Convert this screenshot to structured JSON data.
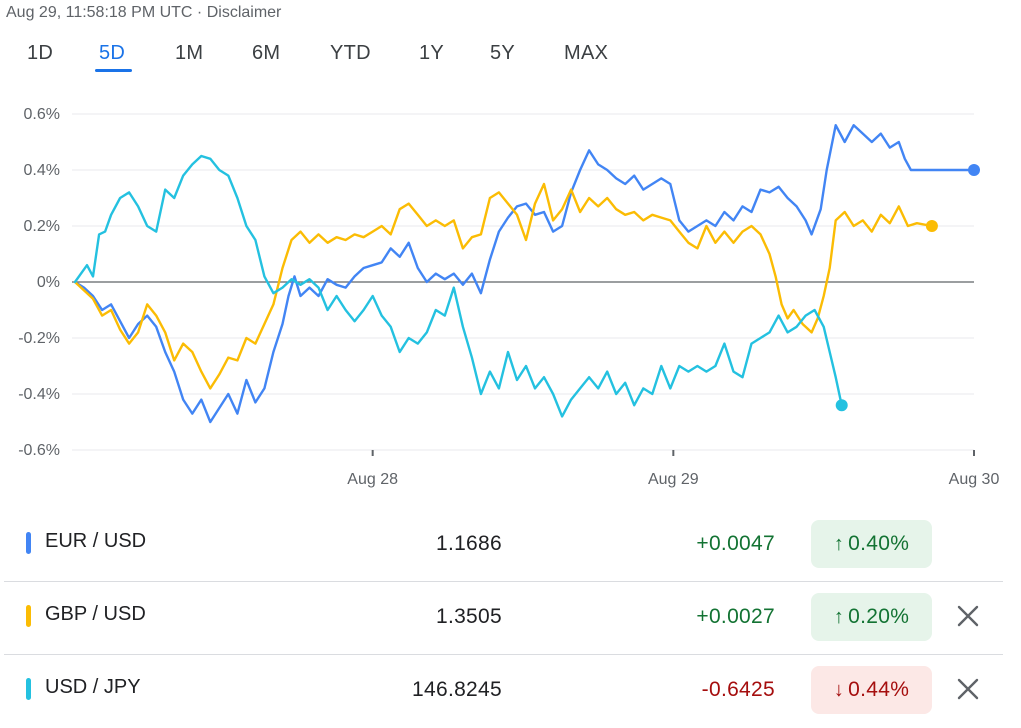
{
  "header": {
    "timestamp": "Aug 29, 11:58:18 PM UTC",
    "separator": "·",
    "disclaimer": "Disclaimer"
  },
  "tabs": [
    {
      "label": "1D",
      "active": false
    },
    {
      "label": "5D",
      "active": true
    },
    {
      "label": "1M",
      "active": false
    },
    {
      "label": "6M",
      "active": false
    },
    {
      "label": "YTD",
      "active": false
    },
    {
      "label": "1Y",
      "active": false
    },
    {
      "label": "5Y",
      "active": false
    },
    {
      "label": "MAX",
      "active": false
    }
  ],
  "chart_data": {
    "type": "line",
    "ylim": [
      -0.6,
      0.6
    ],
    "yticks": [
      "0.6%",
      "0.4%",
      "0.2%",
      "0%",
      "-0.2%",
      "-0.4%",
      "-0.6%"
    ],
    "ytick_values": [
      0.6,
      0.4,
      0.2,
      0,
      -0.2,
      -0.4,
      -0.6
    ],
    "xlim": [
      -1.0,
      2.0
    ],
    "xticks": [
      "Aug 28",
      "Aug 29",
      "Aug 30"
    ],
    "xtick_values": [
      0,
      1,
      2
    ],
    "grid": true,
    "series": [
      {
        "name": "EUR / USD",
        "color": "#4285f4",
        "end_value": 0.4,
        "points": [
          [
            -0.99,
            0
          ],
          [
            -0.96,
            -0.02
          ],
          [
            -0.93,
            -0.05
          ],
          [
            -0.9,
            -0.1
          ],
          [
            -0.87,
            -0.08
          ],
          [
            -0.84,
            -0.14
          ],
          [
            -0.81,
            -0.2
          ],
          [
            -0.78,
            -0.15
          ],
          [
            -0.75,
            -0.12
          ],
          [
            -0.72,
            -0.16
          ],
          [
            -0.69,
            -0.25
          ],
          [
            -0.66,
            -0.32
          ],
          [
            -0.63,
            -0.42
          ],
          [
            -0.6,
            -0.47
          ],
          [
            -0.57,
            -0.42
          ],
          [
            -0.54,
            -0.5
          ],
          [
            -0.51,
            -0.45
          ],
          [
            -0.48,
            -0.4
          ],
          [
            -0.45,
            -0.47
          ],
          [
            -0.42,
            -0.35
          ],
          [
            -0.39,
            -0.43
          ],
          [
            -0.36,
            -0.38
          ],
          [
            -0.33,
            -0.25
          ],
          [
            -0.3,
            -0.15
          ],
          [
            -0.28,
            -0.05
          ],
          [
            -0.26,
            0.02
          ],
          [
            -0.24,
            -0.05
          ],
          [
            -0.21,
            -0.02
          ],
          [
            -0.18,
            -0.05
          ],
          [
            -0.15,
            0.01
          ],
          [
            -0.12,
            -0.01
          ],
          [
            -0.09,
            -0.02
          ],
          [
            -0.06,
            0.02
          ],
          [
            -0.03,
            0.05
          ],
          [
            0,
            0.06
          ],
          [
            0.03,
            0.07
          ],
          [
            0.06,
            0.12
          ],
          [
            0.09,
            0.09
          ],
          [
            0.12,
            0.14
          ],
          [
            0.15,
            0.05
          ],
          [
            0.18,
            0
          ],
          [
            0.21,
            0.03
          ],
          [
            0.24,
            0.01
          ],
          [
            0.27,
            0.03
          ],
          [
            0.3,
            -0.01
          ],
          [
            0.33,
            0.03
          ],
          [
            0.36,
            -0.04
          ],
          [
            0.39,
            0.08
          ],
          [
            0.42,
            0.18
          ],
          [
            0.45,
            0.23
          ],
          [
            0.48,
            0.27
          ],
          [
            0.51,
            0.28
          ],
          [
            0.54,
            0.24
          ],
          [
            0.57,
            0.25
          ],
          [
            0.6,
            0.18
          ],
          [
            0.63,
            0.2
          ],
          [
            0.66,
            0.32
          ],
          [
            0.69,
            0.4
          ],
          [
            0.72,
            0.47
          ],
          [
            0.75,
            0.42
          ],
          [
            0.78,
            0.4
          ],
          [
            0.81,
            0.37
          ],
          [
            0.84,
            0.35
          ],
          [
            0.87,
            0.38
          ],
          [
            0.9,
            0.33
          ],
          [
            0.93,
            0.35
          ],
          [
            0.96,
            0.37
          ],
          [
            0.99,
            0.35
          ],
          [
            1.02,
            0.22
          ],
          [
            1.05,
            0.18
          ],
          [
            1.08,
            0.2
          ],
          [
            1.11,
            0.22
          ],
          [
            1.14,
            0.2
          ],
          [
            1.17,
            0.25
          ],
          [
            1.2,
            0.22
          ],
          [
            1.23,
            0.27
          ],
          [
            1.26,
            0.25
          ],
          [
            1.29,
            0.33
          ],
          [
            1.32,
            0.32
          ],
          [
            1.35,
            0.34
          ],
          [
            1.38,
            0.3
          ],
          [
            1.41,
            0.27
          ],
          [
            1.44,
            0.22
          ],
          [
            1.46,
            0.17
          ],
          [
            1.49,
            0.26
          ],
          [
            1.51,
            0.4
          ],
          [
            1.54,
            0.56
          ],
          [
            1.57,
            0.5
          ],
          [
            1.6,
            0.56
          ],
          [
            1.63,
            0.53
          ],
          [
            1.66,
            0.5
          ],
          [
            1.69,
            0.53
          ],
          [
            1.72,
            0.48
          ],
          [
            1.75,
            0.5
          ],
          [
            1.77,
            0.44
          ],
          [
            1.79,
            0.4
          ],
          [
            2.0,
            0.4
          ]
        ]
      },
      {
        "name": "GBP / USD",
        "color": "#fbbc04",
        "end_value": 0.2,
        "points": [
          [
            -0.99,
            0
          ],
          [
            -0.96,
            -0.03
          ],
          [
            -0.93,
            -0.06
          ],
          [
            -0.9,
            -0.12
          ],
          [
            -0.87,
            -0.1
          ],
          [
            -0.84,
            -0.17
          ],
          [
            -0.81,
            -0.22
          ],
          [
            -0.78,
            -0.18
          ],
          [
            -0.75,
            -0.08
          ],
          [
            -0.72,
            -0.12
          ],
          [
            -0.69,
            -0.18
          ],
          [
            -0.66,
            -0.28
          ],
          [
            -0.63,
            -0.22
          ],
          [
            -0.6,
            -0.25
          ],
          [
            -0.57,
            -0.32
          ],
          [
            -0.54,
            -0.38
          ],
          [
            -0.51,
            -0.33
          ],
          [
            -0.48,
            -0.27
          ],
          [
            -0.45,
            -0.28
          ],
          [
            -0.42,
            -0.2
          ],
          [
            -0.39,
            -0.22
          ],
          [
            -0.36,
            -0.15
          ],
          [
            -0.33,
            -0.08
          ],
          [
            -0.3,
            0.05
          ],
          [
            -0.27,
            0.15
          ],
          [
            -0.24,
            0.18
          ],
          [
            -0.21,
            0.14
          ],
          [
            -0.18,
            0.17
          ],
          [
            -0.15,
            0.14
          ],
          [
            -0.12,
            0.16
          ],
          [
            -0.09,
            0.15
          ],
          [
            -0.06,
            0.17
          ],
          [
            -0.03,
            0.16
          ],
          [
            0,
            0.18
          ],
          [
            0.03,
            0.2
          ],
          [
            0.06,
            0.17
          ],
          [
            0.09,
            0.26
          ],
          [
            0.12,
            0.28
          ],
          [
            0.15,
            0.24
          ],
          [
            0.18,
            0.2
          ],
          [
            0.21,
            0.22
          ],
          [
            0.24,
            0.2
          ],
          [
            0.27,
            0.22
          ],
          [
            0.3,
            0.12
          ],
          [
            0.33,
            0.16
          ],
          [
            0.36,
            0.17
          ],
          [
            0.39,
            0.3
          ],
          [
            0.42,
            0.32
          ],
          [
            0.45,
            0.28
          ],
          [
            0.48,
            0.24
          ],
          [
            0.51,
            0.15
          ],
          [
            0.54,
            0.28
          ],
          [
            0.57,
            0.35
          ],
          [
            0.6,
            0.22
          ],
          [
            0.63,
            0.26
          ],
          [
            0.66,
            0.33
          ],
          [
            0.69,
            0.25
          ],
          [
            0.72,
            0.3
          ],
          [
            0.75,
            0.27
          ],
          [
            0.78,
            0.3
          ],
          [
            0.81,
            0.26
          ],
          [
            0.84,
            0.24
          ],
          [
            0.87,
            0.25
          ],
          [
            0.9,
            0.22
          ],
          [
            0.93,
            0.24
          ],
          [
            0.96,
            0.23
          ],
          [
            0.99,
            0.22
          ],
          [
            1.02,
            0.18
          ],
          [
            1.05,
            0.14
          ],
          [
            1.08,
            0.12
          ],
          [
            1.11,
            0.2
          ],
          [
            1.14,
            0.14
          ],
          [
            1.17,
            0.18
          ],
          [
            1.2,
            0.14
          ],
          [
            1.23,
            0.18
          ],
          [
            1.26,
            0.2
          ],
          [
            1.29,
            0.17
          ],
          [
            1.32,
            0.1
          ],
          [
            1.34,
            0.02
          ],
          [
            1.36,
            -0.08
          ],
          [
            1.38,
            -0.13
          ],
          [
            1.4,
            -0.1
          ],
          [
            1.43,
            -0.15
          ],
          [
            1.46,
            -0.18
          ],
          [
            1.48,
            -0.13
          ],
          [
            1.5,
            -0.05
          ],
          [
            1.52,
            0.05
          ],
          [
            1.54,
            0.22
          ],
          [
            1.57,
            0.25
          ],
          [
            1.6,
            0.2
          ],
          [
            1.63,
            0.22
          ],
          [
            1.66,
            0.18
          ],
          [
            1.69,
            0.24
          ],
          [
            1.72,
            0.21
          ],
          [
            1.75,
            0.27
          ],
          [
            1.78,
            0.2
          ],
          [
            1.81,
            0.21
          ],
          [
            1.86,
            0.2
          ]
        ]
      },
      {
        "name": "USD / JPY",
        "color": "#24c1e0",
        "end_value": -0.44,
        "points": [
          [
            -0.99,
            0
          ],
          [
            -0.97,
            0.03
          ],
          [
            -0.95,
            0.06
          ],
          [
            -0.93,
            0.02
          ],
          [
            -0.91,
            0.17
          ],
          [
            -0.89,
            0.18
          ],
          [
            -0.87,
            0.24
          ],
          [
            -0.84,
            0.3
          ],
          [
            -0.81,
            0.32
          ],
          [
            -0.78,
            0.27
          ],
          [
            -0.75,
            0.2
          ],
          [
            -0.72,
            0.18
          ],
          [
            -0.69,
            0.33
          ],
          [
            -0.66,
            0.3
          ],
          [
            -0.63,
            0.38
          ],
          [
            -0.6,
            0.42
          ],
          [
            -0.57,
            0.45
          ],
          [
            -0.54,
            0.44
          ],
          [
            -0.51,
            0.4
          ],
          [
            -0.48,
            0.38
          ],
          [
            -0.45,
            0.3
          ],
          [
            -0.42,
            0.2
          ],
          [
            -0.39,
            0.15
          ],
          [
            -0.36,
            0.02
          ],
          [
            -0.33,
            -0.04
          ],
          [
            -0.3,
            -0.02
          ],
          [
            -0.27,
            0.01
          ],
          [
            -0.24,
            -0.01
          ],
          [
            -0.21,
            0.01
          ],
          [
            -0.18,
            -0.02
          ],
          [
            -0.15,
            -0.1
          ],
          [
            -0.12,
            -0.05
          ],
          [
            -0.09,
            -0.1
          ],
          [
            -0.06,
            -0.14
          ],
          [
            -0.03,
            -0.1
          ],
          [
            0,
            -0.05
          ],
          [
            0.03,
            -0.12
          ],
          [
            0.06,
            -0.16
          ],
          [
            0.09,
            -0.25
          ],
          [
            0.12,
            -0.2
          ],
          [
            0.15,
            -0.22
          ],
          [
            0.18,
            -0.18
          ],
          [
            0.21,
            -0.1
          ],
          [
            0.24,
            -0.12
          ],
          [
            0.27,
            -0.02
          ],
          [
            0.3,
            -0.16
          ],
          [
            0.33,
            -0.27
          ],
          [
            0.36,
            -0.4
          ],
          [
            0.39,
            -0.32
          ],
          [
            0.42,
            -0.38
          ],
          [
            0.45,
            -0.25
          ],
          [
            0.48,
            -0.35
          ],
          [
            0.51,
            -0.3
          ],
          [
            0.54,
            -0.38
          ],
          [
            0.57,
            -0.34
          ],
          [
            0.6,
            -0.4
          ],
          [
            0.63,
            -0.48
          ],
          [
            0.66,
            -0.42
          ],
          [
            0.69,
            -0.38
          ],
          [
            0.72,
            -0.34
          ],
          [
            0.75,
            -0.38
          ],
          [
            0.78,
            -0.32
          ],
          [
            0.81,
            -0.4
          ],
          [
            0.84,
            -0.36
          ],
          [
            0.87,
            -0.44
          ],
          [
            0.9,
            -0.38
          ],
          [
            0.93,
            -0.4
          ],
          [
            0.96,
            -0.3
          ],
          [
            0.99,
            -0.38
          ],
          [
            1.02,
            -0.3
          ],
          [
            1.05,
            -0.32
          ],
          [
            1.08,
            -0.3
          ],
          [
            1.11,
            -0.32
          ],
          [
            1.14,
            -0.3
          ],
          [
            1.17,
            -0.22
          ],
          [
            1.2,
            -0.32
          ],
          [
            1.23,
            -0.34
          ],
          [
            1.26,
            -0.22
          ],
          [
            1.29,
            -0.2
          ],
          [
            1.32,
            -0.18
          ],
          [
            1.35,
            -0.12
          ],
          [
            1.38,
            -0.18
          ],
          [
            1.41,
            -0.16
          ],
          [
            1.44,
            -0.12
          ],
          [
            1.47,
            -0.1
          ],
          [
            1.5,
            -0.16
          ],
          [
            1.52,
            -0.25
          ],
          [
            1.54,
            -0.34
          ],
          [
            1.56,
            -0.44
          ]
        ]
      }
    ]
  },
  "rows": [
    {
      "pair": "EUR / USD",
      "color": "#4285f4",
      "price": "1.1686",
      "change": "+0.0047",
      "direction": "up",
      "arrow": "↑",
      "pct": "0.40%",
      "removable": false
    },
    {
      "pair": "GBP / USD",
      "color": "#fbbc04",
      "price": "1.3505",
      "change": "+0.0027",
      "direction": "up",
      "arrow": "↑",
      "pct": "0.20%",
      "removable": true
    },
    {
      "pair": "USD / JPY",
      "color": "#24c1e0",
      "price": "146.8245",
      "change": "-0.6425",
      "direction": "down",
      "arrow": "↓",
      "pct": "0.44%",
      "removable": true
    }
  ],
  "colors": {
    "up": "#137333",
    "down": "#a50e0e",
    "accent": "#1a73e8",
    "grid": "#e8eaed",
    "zero": "#5f6368"
  }
}
